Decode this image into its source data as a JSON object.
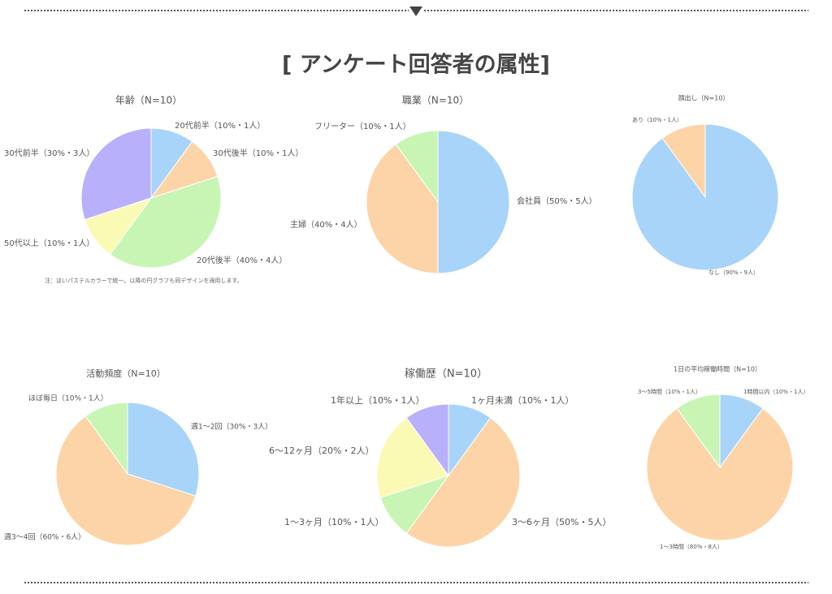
{
  "title": "[ アンケート回答者の属性]",
  "note": "注：淡いパステルカラーで統一。以降の円グラフも同デザインを適用します。",
  "chart_data": [
    {
      "type": "pie",
      "title": "年齢（N=10）",
      "categories": [
        "20代前半（10%・1人）",
        "30代後半（10%・1人）",
        "20代後半（40%・4人）",
        "50代以上（10%・1人）",
        "30代前半（30%・3人）"
      ],
      "values": [
        10,
        10,
        40,
        10,
        30
      ],
      "colors": [
        "#a8d4fa",
        "#fdd4a8",
        "#c8f5b4",
        "#fafab4",
        "#b8b0fa"
      ]
    },
    {
      "type": "pie",
      "title": "職業（N=10）",
      "categories": [
        "会社員（50%・5人）",
        "主婦（40%・4人）",
        "フリーター（10%・1人）"
      ],
      "values": [
        50,
        40,
        10
      ],
      "colors": [
        "#a8d4fa",
        "#fdd4a8",
        "#c8f5b4"
      ]
    },
    {
      "type": "pie",
      "title": "顔出し（N=10）",
      "categories": [
        "なし（90%・9人）",
        "あり（10%・1人）"
      ],
      "values": [
        90,
        10
      ],
      "colors": [
        "#a8d4fa",
        "#fdd4a8"
      ]
    },
    {
      "type": "pie",
      "title": "活動頻度（N=10）",
      "categories": [
        "週1〜2回（30%・3人）",
        "週3〜4回（60%・6人）",
        "ほぼ毎日（10%・1人）"
      ],
      "values": [
        30,
        60,
        10
      ],
      "colors": [
        "#a8d4fa",
        "#fdd4a8",
        "#c8f5b4"
      ]
    },
    {
      "type": "pie",
      "title": "稼働歴（N=10）",
      "categories": [
        "1ヶ月未満（10%・1人）",
        "3〜6ヶ月（50%・5人）",
        "1〜3ヶ月（10%・1人）",
        "6〜12ヶ月（20%・2人）",
        "1年以上（10%・1人）"
      ],
      "values": [
        10,
        50,
        10,
        20,
        10
      ],
      "colors": [
        "#a8d4fa",
        "#fdd4a8",
        "#c8f5b4",
        "#fafab4",
        "#b8b0fa"
      ]
    },
    {
      "type": "pie",
      "title": "1日の平均稼働時間（N=10）",
      "categories": [
        "1時間以内（10%・1人）",
        "1〜3時間（80%・8人）",
        "3〜5時間（10%・1人）"
      ],
      "values": [
        10,
        80,
        10
      ],
      "colors": [
        "#a8d4fa",
        "#fdd4a8",
        "#c8f5b4"
      ]
    }
  ]
}
